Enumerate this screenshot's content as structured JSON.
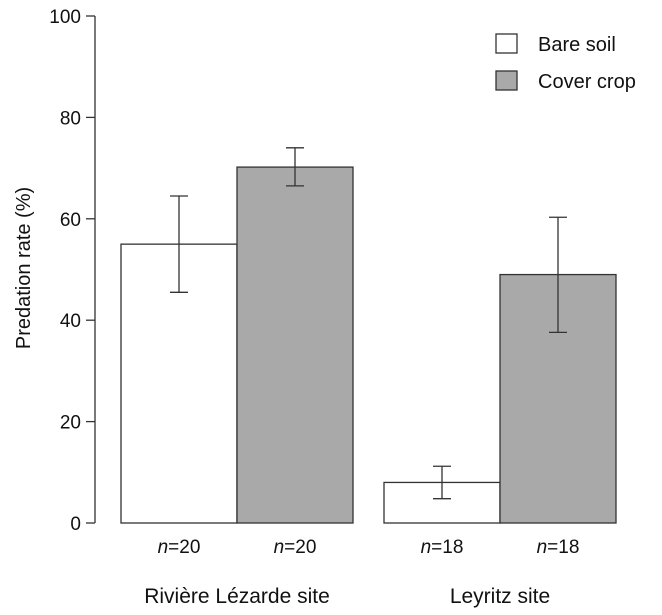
{
  "chart_data": {
    "type": "bar",
    "title": "",
    "xlabel": "",
    "ylabel": "Predation rate (%)",
    "ylim": [
      0,
      100
    ],
    "yticks": [
      0,
      20,
      40,
      60,
      80,
      100
    ],
    "grid": false,
    "legend_position": "top-right",
    "categories": [
      "Rivière Lézarde site",
      "Leyritz site"
    ],
    "series": [
      {
        "name": "Bare soil",
        "color": "#ffffff",
        "values": [
          55,
          8
        ],
        "error_low": [
          45.5,
          4.8
        ],
        "error_high": [
          64.5,
          11.2
        ],
        "n_labels": [
          "=20",
          "=18"
        ]
      },
      {
        "name": "Cover crop",
        "color": "#a9a9a9",
        "values": [
          70.2,
          49
        ],
        "error_low": [
          66.5,
          37.6
        ],
        "error_high": [
          74,
          60.3
        ],
        "n_labels": [
          "=20",
          "=18"
        ]
      }
    ],
    "n_prefix": "n"
  }
}
